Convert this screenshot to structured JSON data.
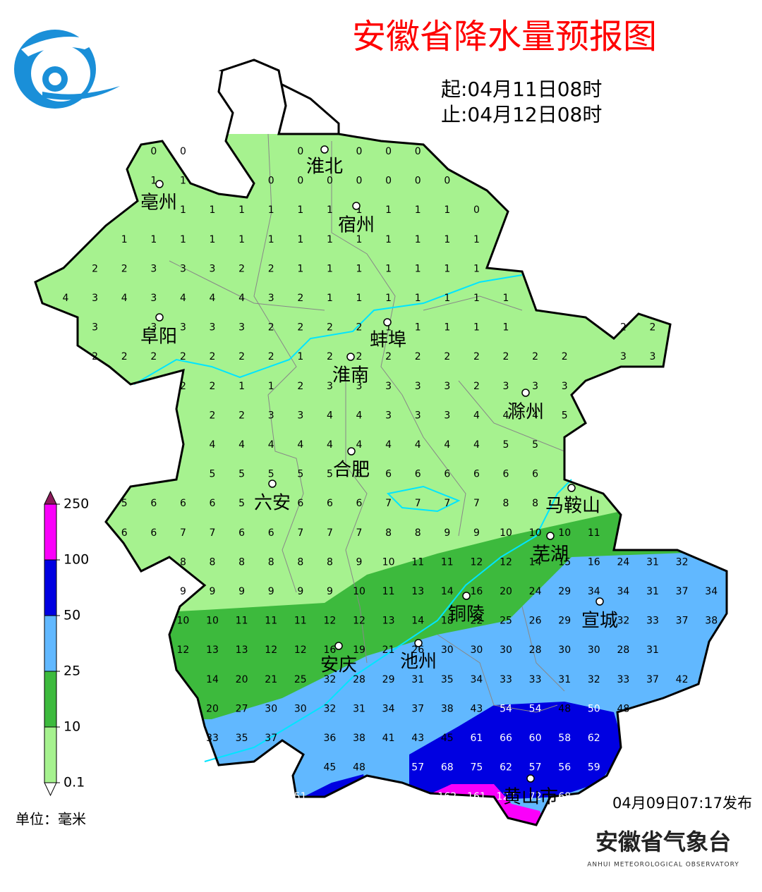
{
  "title": "安徽省降水量预报图",
  "period": {
    "start": "起:04月11日08时",
    "end": "止:04月12日08时"
  },
  "cities": [
    "淮北",
    "亳州",
    "宿州",
    "阜阳",
    "蚌埠",
    "淮南",
    "滁州",
    "合肥",
    "六安",
    "马鞍山",
    "芜湖",
    "铜陵",
    "宣城",
    "安庆",
    "池州",
    "黄山市"
  ],
  "grid": {
    "rows": [
      [
        null,
        null,
        null,
        0,
        0,
        null,
        null,
        null,
        0,
        null,
        0,
        0,
        0,
        null,
        null,
        null,
        null,
        null,
        null,
        null,
        null,
        null,
        null
      ],
      [
        null,
        null,
        null,
        1,
        1,
        null,
        null,
        0,
        0,
        0,
        0,
        0,
        0,
        0,
        null,
        null,
        null,
        null,
        null,
        null,
        null,
        null,
        null
      ],
      [
        null,
        null,
        null,
        null,
        1,
        1,
        1,
        1,
        1,
        1,
        1,
        1,
        1,
        1,
        0,
        null,
        null,
        null,
        null,
        null,
        null,
        null,
        null
      ],
      [
        null,
        null,
        1,
        1,
        1,
        1,
        1,
        1,
        1,
        1,
        1,
        1,
        1,
        1,
        1,
        null,
        null,
        null,
        null,
        null,
        null,
        null,
        null
      ],
      [
        null,
        2,
        2,
        3,
        3,
        3,
        2,
        2,
        1,
        1,
        1,
        1,
        1,
        1,
        1,
        null,
        null,
        null,
        null,
        null,
        null,
        null,
        null
      ],
      [
        4,
        3,
        4,
        3,
        4,
        4,
        4,
        3,
        2,
        1,
        1,
        1,
        1,
        1,
        1,
        1,
        null,
        null,
        null,
        null,
        null,
        null,
        null
      ],
      [
        null,
        3,
        null,
        3,
        3,
        3,
        3,
        2,
        2,
        2,
        2,
        1,
        1,
        1,
        1,
        1,
        null,
        null,
        null,
        2,
        2,
        null,
        null
      ],
      [
        null,
        2,
        2,
        2,
        2,
        2,
        2,
        2,
        1,
        2,
        2,
        2,
        2,
        2,
        2,
        2,
        2,
        2,
        null,
        3,
        3,
        null,
        null
      ],
      [
        null,
        null,
        null,
        null,
        2,
        2,
        1,
        1,
        2,
        3,
        3,
        3,
        3,
        3,
        2,
        3,
        3,
        3,
        null,
        null,
        null,
        null,
        null
      ],
      [
        null,
        null,
        null,
        null,
        null,
        2,
        2,
        3,
        3,
        4,
        4,
        3,
        3,
        3,
        4,
        4,
        4,
        5,
        null,
        null,
        null,
        null,
        null
      ],
      [
        null,
        null,
        null,
        null,
        null,
        4,
        4,
        4,
        4,
        4,
        4,
        4,
        4,
        4,
        4,
        5,
        5,
        null,
        null,
        null,
        null,
        null,
        null
      ],
      [
        null,
        null,
        null,
        null,
        null,
        5,
        5,
        5,
        5,
        5,
        6,
        6,
        6,
        6,
        6,
        6,
        6,
        null,
        null,
        null,
        null,
        null,
        null
      ],
      [
        null,
        null,
        5,
        6,
        6,
        6,
        5,
        null,
        6,
        6,
        6,
        7,
        7,
        7,
        7,
        8,
        8,
        null,
        null,
        null,
        null,
        null,
        null
      ],
      [
        null,
        null,
        6,
        6,
        7,
        7,
        6,
        6,
        7,
        7,
        7,
        8,
        8,
        9,
        9,
        10,
        10,
        10,
        11,
        null,
        null,
        null,
        null
      ],
      [
        null,
        null,
        null,
        null,
        8,
        8,
        8,
        8,
        8,
        8,
        9,
        10,
        11,
        11,
        12,
        12,
        14,
        15,
        16,
        24,
        31,
        32,
        null
      ],
      [
        null,
        null,
        null,
        null,
        9,
        9,
        9,
        9,
        9,
        9,
        10,
        11,
        13,
        14,
        16,
        20,
        24,
        29,
        34,
        34,
        31,
        37,
        34
      ],
      [
        null,
        null,
        null,
        null,
        10,
        10,
        11,
        11,
        11,
        12,
        12,
        13,
        14,
        18,
        22,
        25,
        26,
        29,
        null,
        32,
        33,
        37,
        38
      ],
      [
        null,
        null,
        null,
        null,
        12,
        13,
        13,
        12,
        12,
        16,
        19,
        21,
        26,
        30,
        30,
        30,
        28,
        30,
        30,
        28,
        31,
        null,
        null
      ],
      [
        null,
        null,
        null,
        null,
        null,
        14,
        20,
        21,
        25,
        32,
        28,
        29,
        31,
        35,
        34,
        33,
        33,
        31,
        32,
        33,
        37,
        42,
        null
      ],
      [
        null,
        null,
        null,
        null,
        null,
        20,
        27,
        30,
        30,
        32,
        31,
        34,
        37,
        38,
        43,
        54,
        54,
        48,
        50,
        48,
        null,
        null,
        null
      ],
      [
        null,
        null,
        null,
        null,
        null,
        33,
        35,
        37,
        null,
        36,
        38,
        41,
        43,
        45,
        61,
        66,
        60,
        58,
        62,
        null,
        null,
        null,
        null
      ],
      [
        null,
        null,
        null,
        null,
        null,
        null,
        null,
        null,
        null,
        45,
        48,
        null,
        57,
        68,
        75,
        62,
        57,
        56,
        59,
        null,
        null,
        null,
        null
      ],
      [
        null,
        null,
        null,
        null,
        null,
        null,
        null,
        null,
        51,
        null,
        null,
        null,
        null,
        162,
        161,
        127,
        72,
        68,
        null,
        null,
        null,
        null,
        null
      ]
    ]
  },
  "legend": {
    "levels": [
      0.1,
      10,
      25,
      50,
      100,
      250
    ],
    "colors": [
      "#a6f28f",
      "#3dba3d",
      "#61b8ff",
      "#0000e1",
      "#fa00fa"
    ],
    "unit": "单位：毫米"
  },
  "issued": "04月09日07:17发布",
  "org": {
    "name": "安徽省气象台",
    "english": "ANHUI METEOROLOGICAL OBSERVATORY"
  }
}
